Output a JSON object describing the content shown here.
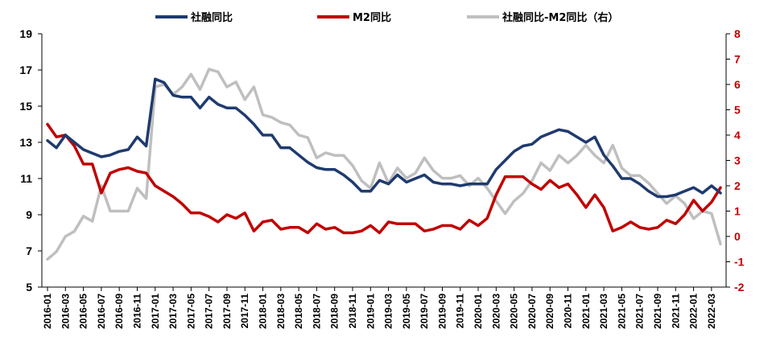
{
  "chart_data": {
    "type": "line",
    "x": [
      "2016-01",
      "2016-02",
      "2016-03",
      "2016-04",
      "2016-05",
      "2016-06",
      "2016-07",
      "2016-08",
      "2016-09",
      "2016-10",
      "2016-11",
      "2016-12",
      "2017-01",
      "2017-02",
      "2017-03",
      "2017-04",
      "2017-05",
      "2017-06",
      "2017-07",
      "2017-08",
      "2017-09",
      "2017-10",
      "2017-11",
      "2017-12",
      "2018-01",
      "2018-02",
      "2018-03",
      "2018-04",
      "2018-05",
      "2018-06",
      "2018-07",
      "2018-08",
      "2018-09",
      "2018-10",
      "2018-11",
      "2018-12",
      "2019-01",
      "2019-02",
      "2019-03",
      "2019-04",
      "2019-05",
      "2019-06",
      "2019-07",
      "2019-08",
      "2019-09",
      "2019-10",
      "2019-11",
      "2019-12",
      "2020-01",
      "2020-02",
      "2020-03",
      "2020-04",
      "2020-05",
      "2020-06",
      "2020-07",
      "2020-08",
      "2020-09",
      "2020-10",
      "2020-11",
      "2020-12",
      "2021-01",
      "2021-02",
      "2021-03",
      "2021-04",
      "2021-05",
      "2021-06",
      "2021-07",
      "2021-08",
      "2021-09",
      "2021-10",
      "2021-11",
      "2021-12",
      "2022-01",
      "2022-02",
      "2022-03",
      "2022-04"
    ],
    "xtick_labels": [
      "2016-01",
      "2016-03",
      "2016-05",
      "2016-07",
      "2016-09",
      "2016-11",
      "2017-01",
      "2017-03",
      "2017-05",
      "2017-07",
      "2017-09",
      "2017-11",
      "2018-01",
      "2018-03",
      "2018-05",
      "2018-07",
      "2018-09",
      "2018-11",
      "2019-01",
      "2019-03",
      "2019-05",
      "2019-07",
      "2019-09",
      "2019-11",
      "2020-01",
      "2020-03",
      "2020-05",
      "2020-07",
      "2020-09",
      "2020-11",
      "2021-01",
      "2021-03",
      "2021-05",
      "2021-07",
      "2021-09",
      "2021-11",
      "2022-01",
      "2022-03"
    ],
    "series": [
      {
        "name": "社融同比",
        "axis": "left",
        "color": "#1f3a6e",
        "values": [
          13.1,
          12.7,
          13.4,
          13.0,
          12.6,
          12.4,
          12.2,
          12.3,
          12.5,
          12.6,
          13.3,
          12.8,
          16.5,
          16.3,
          15.6,
          15.5,
          15.5,
          14.9,
          15.5,
          15.1,
          14.9,
          14.9,
          14.5,
          14.0,
          13.4,
          13.4,
          12.7,
          12.7,
          12.3,
          11.9,
          11.6,
          11.5,
          11.5,
          11.2,
          10.8,
          10.3,
          10.3,
          10.9,
          10.7,
          11.2,
          10.8,
          11.0,
          11.2,
          10.8,
          10.7,
          10.7,
          10.6,
          10.7,
          10.7,
          10.7,
          11.5,
          12.0,
          12.5,
          12.8,
          12.9,
          13.3,
          13.5,
          13.7,
          13.6,
          13.3,
          13.0,
          13.3,
          12.3,
          11.7,
          11.0,
          11.0,
          10.7,
          10.3,
          10.0,
          10.0,
          10.1,
          10.3,
          10.5,
          10.2,
          10.6,
          10.2
        ]
      },
      {
        "name": "M2同比",
        "axis": "left",
        "color": "#c00000",
        "values": [
          14.0,
          13.3,
          13.4,
          12.8,
          11.8,
          11.8,
          10.2,
          11.3,
          11.5,
          11.6,
          11.4,
          11.3,
          10.6,
          10.3,
          10.0,
          9.6,
          9.1,
          9.1,
          8.9,
          8.6,
          9.0,
          8.8,
          9.1,
          8.1,
          8.6,
          8.7,
          8.2,
          8.3,
          8.3,
          8.0,
          8.5,
          8.2,
          8.3,
          8.0,
          8.0,
          8.1,
          8.4,
          8.0,
          8.6,
          8.5,
          8.5,
          8.5,
          8.1,
          8.2,
          8.4,
          8.4,
          8.2,
          8.7,
          8.4,
          8.8,
          10.1,
          11.1,
          11.1,
          11.1,
          10.7,
          10.4,
          10.9,
          10.5,
          10.7,
          10.1,
          9.4,
          10.1,
          9.4,
          8.1,
          8.3,
          8.6,
          8.3,
          8.2,
          8.3,
          8.7,
          8.5,
          9.0,
          9.8,
          9.2,
          9.7,
          10.5
        ]
      },
      {
        "name": "社融同比-M2同比（右）",
        "axis": "right",
        "color": "#bfbfbf",
        "values": [
          -0.9,
          -0.6,
          0.0,
          0.2,
          0.8,
          0.6,
          2.0,
          1.0,
          1.0,
          1.0,
          1.9,
          1.5,
          5.9,
          6.0,
          5.6,
          5.9,
          6.4,
          5.8,
          6.6,
          6.5,
          5.9,
          6.1,
          5.4,
          5.9,
          4.8,
          4.7,
          4.5,
          4.4,
          4.0,
          3.9,
          3.1,
          3.3,
          3.2,
          3.2,
          2.8,
          2.2,
          1.9,
          2.9,
          2.1,
          2.7,
          2.3,
          2.5,
          3.1,
          2.6,
          2.3,
          2.3,
          2.4,
          2.0,
          2.3,
          1.9,
          1.4,
          0.9,
          1.4,
          1.7,
          2.2,
          2.9,
          2.6,
          3.2,
          2.9,
          3.2,
          3.6,
          3.2,
          2.9,
          3.6,
          2.7,
          2.4,
          2.4,
          2.1,
          1.7,
          1.3,
          1.6,
          1.3,
          0.7,
          1.0,
          0.9,
          -0.3
        ]
      }
    ],
    "ylim_left": [
      5,
      19
    ],
    "yticks_left": [
      5,
      7,
      9,
      11,
      13,
      15,
      17,
      19
    ],
    "ylim_right": [
      -2,
      8
    ],
    "yticks_right": [
      -2,
      -1,
      0,
      1,
      2,
      3,
      4,
      5,
      6,
      7,
      8
    ],
    "legend": {
      "placement": "top",
      "entries": [
        "社融同比",
        "M2同比",
        "社融同比-M2同比（右）"
      ]
    },
    "grid": false
  }
}
